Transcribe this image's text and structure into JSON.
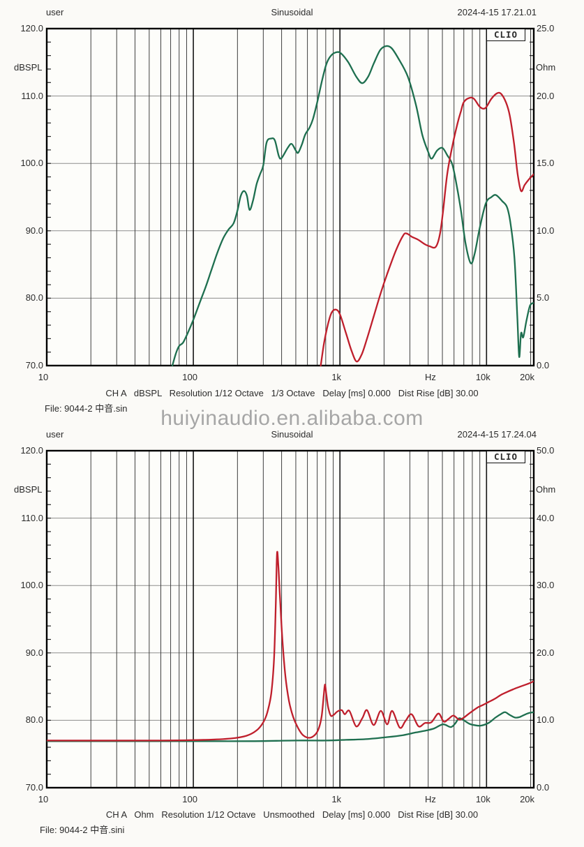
{
  "watermark": {
    "text": "huiyinaudio.en.alibaba.com",
    "color": "#a6a6a6"
  },
  "chart_data": [
    {
      "type": "line",
      "title": "Sinusoidal",
      "header": {
        "user": "user",
        "signal": "Sinusoidal",
        "datetime": "2024-4-15 17.21.01"
      },
      "logo": "CLIO",
      "footer": "CH A   dBSPL   Resolution 1/12 Octave   1/3 Octave   Delay [ms] 0.000   Dist Rise [dB] 30.00",
      "file_label": "File: 9044-2 中音.sin",
      "x_axis": {
        "unit": "Hz",
        "scale": "log",
        "min": 10,
        "max": 21000,
        "ticks": [
          {
            "f": 10,
            "label": "10"
          },
          {
            "f": 100,
            "label": "100"
          },
          {
            "f": 1000,
            "label": "1k"
          },
          {
            "f": 10000,
            "label": "10k"
          },
          {
            "f": 20000,
            "label": "20k"
          }
        ]
      },
      "left_axis": {
        "label": "dBSPL",
        "min": 70,
        "max": 120,
        "tick_values": [
          120,
          110,
          100,
          90,
          80,
          70
        ],
        "tick_labels": [
          "120.0",
          "110.0",
          "100.0",
          "90.0",
          "80.0",
          "70.0"
        ]
      },
      "right_axis": {
        "label": "Ohm",
        "min": 0,
        "max": 25,
        "tick_labels": [
          "25.0",
          "20.0",
          "15.0",
          "10.0",
          "5.0",
          "0.0"
        ]
      },
      "grid": true,
      "series": [
        {
          "name": "spl-response",
          "color": "#1e6f4f",
          "axis": "left",
          "unit": "dBSPL",
          "points": [
            [
              72,
              70
            ],
            [
              76,
              71.8
            ],
            [
              80,
              72.9
            ],
            [
              85,
              73.4
            ],
            [
              91,
              74.7
            ],
            [
              100,
              76.8
            ],
            [
              113,
              79.9
            ],
            [
              122,
              81.8
            ],
            [
              132,
              84
            ],
            [
              145,
              86.6
            ],
            [
              160,
              88.9
            ],
            [
              174,
              90.2
            ],
            [
              188,
              91.1
            ],
            [
              200,
              93
            ],
            [
              210,
              95.1
            ],
            [
              221,
              95.9
            ],
            [
              232,
              95.2
            ],
            [
              242,
              93.1
            ],
            [
              256,
              94.6
            ],
            [
              270,
              96.9
            ],
            [
              285,
              98.4
            ],
            [
              300,
              99.7
            ],
            [
              316,
              103.1
            ],
            [
              340,
              103.7
            ],
            [
              360,
              103.4
            ],
            [
              383,
              101.1
            ],
            [
              400,
              100.8
            ],
            [
              440,
              102.3
            ],
            [
              468,
              102.9
            ],
            [
              500,
              101.9
            ],
            [
              520,
              101.6
            ],
            [
              552,
              102.9
            ],
            [
              580,
              104.3
            ],
            [
              620,
              105.3
            ],
            [
              655,
              106.6
            ],
            [
              700,
              109.1
            ],
            [
              757,
              112.4
            ],
            [
              810,
              114.8
            ],
            [
              870,
              116
            ],
            [
              950,
              116.5
            ],
            [
              1020,
              116.3
            ],
            [
              1140,
              115
            ],
            [
              1290,
              112.9
            ],
            [
              1420,
              111.9
            ],
            [
              1560,
              112.9
            ],
            [
              1700,
              114.8
            ],
            [
              1880,
              116.8
            ],
            [
              2060,
              117.4
            ],
            [
              2250,
              117.1
            ],
            [
              2500,
              115.6
            ],
            [
              2900,
              112.9
            ],
            [
              3300,
              108.7
            ],
            [
              3650,
              104.2
            ],
            [
              4000,
              101.7
            ],
            [
              4220,
              100.7
            ],
            [
              4600,
              101.9
            ],
            [
              5000,
              102.3
            ],
            [
              5400,
              101.2
            ],
            [
              5850,
              99.8
            ],
            [
              6300,
              96.4
            ],
            [
              6700,
              92.9
            ],
            [
              7200,
              88.1
            ],
            [
              7800,
              85.2
            ],
            [
              8300,
              86.6
            ],
            [
              9000,
              90.5
            ],
            [
              9900,
              94.1
            ],
            [
              10800,
              95
            ],
            [
              11600,
              95.3
            ],
            [
              12800,
              94.4
            ],
            [
              13800,
              93.5
            ],
            [
              14600,
              91
            ],
            [
              15500,
              86
            ],
            [
              16200,
              77.5
            ],
            [
              16700,
              71.3
            ],
            [
              17200,
              74.8
            ],
            [
              17800,
              74.2
            ],
            [
              18700,
              76.6
            ],
            [
              19800,
              78.9
            ],
            [
              21000,
              79.3
            ]
          ]
        },
        {
          "name": "distortion-rise",
          "color": "#bf1f2c",
          "axis": "left",
          "unit": "dBSPL",
          "points": [
            [
              740,
              70
            ],
            [
              780,
              73.4
            ],
            [
              830,
              76.2
            ],
            [
              880,
              77.9
            ],
            [
              940,
              78.3
            ],
            [
              1000,
              77.6
            ],
            [
              1100,
              74.8
            ],
            [
              1200,
              72.2
            ],
            [
              1300,
              70.6
            ],
            [
              1410,
              71.7
            ],
            [
              1520,
              73.8
            ],
            [
              1700,
              77.3
            ],
            [
              1900,
              80.8
            ],
            [
              2100,
              83.6
            ],
            [
              2400,
              87
            ],
            [
              2700,
              89.3
            ],
            [
              2850,
              89.6
            ],
            [
              3100,
              89.1
            ],
            [
              3400,
              88.7
            ],
            [
              3800,
              88
            ],
            [
              4100,
              87.7
            ],
            [
              4500,
              87.6
            ],
            [
              4800,
              89.4
            ],
            [
              5050,
              92.9
            ],
            [
              5400,
              98.5
            ],
            [
              5850,
              102.6
            ],
            [
              6350,
              106
            ],
            [
              6700,
              107.8
            ],
            [
              7000,
              109.1
            ],
            [
              7600,
              109.7
            ],
            [
              8200,
              109.6
            ],
            [
              9000,
              108.4
            ],
            [
              9800,
              108.2
            ],
            [
              10800,
              109.6
            ],
            [
              11800,
              110.4
            ],
            [
              12600,
              110.3
            ],
            [
              13600,
              109
            ],
            [
              14400,
              107.1
            ],
            [
              15400,
              103
            ],
            [
              16300,
              98.4
            ],
            [
              17200,
              95.9
            ],
            [
              18200,
              96.8
            ],
            [
              19400,
              97.6
            ],
            [
              21000,
              98.4
            ]
          ]
        }
      ]
    },
    {
      "type": "line",
      "title": "Sinusoidal",
      "header": {
        "user": "user",
        "signal": "Sinusoidal",
        "datetime": "2024-4-15 17.24.04"
      },
      "logo": "CLIO",
      "footer": "CH A   Ohm   Resolution 1/12 Octave   Unsmoothed   Delay [ms] 0.000   Dist Rise [dB] 30.00",
      "file_label": "File: 9044-2  中音.sini",
      "x_axis": {
        "unit": "Hz",
        "scale": "log",
        "min": 10,
        "max": 21000,
        "ticks": [
          {
            "f": 10,
            "label": "10"
          },
          {
            "f": 100,
            "label": "100"
          },
          {
            "f": 1000,
            "label": "1k"
          },
          {
            "f": 10000,
            "label": "10k"
          },
          {
            "f": 20000,
            "label": "20k"
          }
        ]
      },
      "left_axis": {
        "label": "dBSPL",
        "min": 70,
        "max": 120,
        "tick_values": [
          120,
          110,
          100,
          90,
          80,
          70
        ],
        "tick_labels": [
          "120.0",
          "110.0",
          "100.0",
          "90.0",
          "80.0",
          "70.0"
        ]
      },
      "right_axis": {
        "label": "Ohm",
        "min": 0,
        "max": 50,
        "tick_labels": [
          "50.0",
          "40.0",
          "30.0",
          "20.0",
          "10.0",
          "0.0"
        ]
      },
      "grid": true,
      "series": [
        {
          "name": "spl-flat",
          "color": "#1e6f4f",
          "axis": "left",
          "unit": "dBSPL",
          "points": [
            [
              10,
              76.9
            ],
            [
              60,
              76.9
            ],
            [
              120,
              76.9
            ],
            [
              250,
              76.9
            ],
            [
              500,
              77
            ],
            [
              800,
              77
            ],
            [
              1100,
              77.1
            ],
            [
              1500,
              77.2
            ],
            [
              2100,
              77.5
            ],
            [
              2700,
              77.8
            ],
            [
              3300,
              78.2
            ],
            [
              3900,
              78.5
            ],
            [
              4400,
              78.8
            ],
            [
              5050,
              79.4
            ],
            [
              5700,
              79
            ],
            [
              6100,
              79.5
            ],
            [
              6500,
              80.3
            ],
            [
              7000,
              80
            ],
            [
              7600,
              79.5
            ],
            [
              8200,
              79.3
            ],
            [
              9100,
              79.2
            ],
            [
              10300,
              79.6
            ],
            [
              11500,
              80.4
            ],
            [
              12700,
              81
            ],
            [
              13400,
              81.2
            ],
            [
              14400,
              80.8
            ],
            [
              15700,
              80.4
            ],
            [
              16900,
              80.5
            ],
            [
              18100,
              80.8
            ],
            [
              19600,
              81.1
            ],
            [
              21000,
              81.2
            ]
          ]
        },
        {
          "name": "impedance",
          "color": "#bf1f2c",
          "axis": "right",
          "unit": "Ohm",
          "points": [
            [
              10,
              7
            ],
            [
              60,
              7
            ],
            [
              120,
              7.1
            ],
            [
              180,
              7.3
            ],
            [
              230,
              7.7
            ],
            [
              270,
              8.5
            ],
            [
              300,
              9.7
            ],
            [
              320,
              11.2
            ],
            [
              340,
              14
            ],
            [
              355,
              19
            ],
            [
              365,
              27
            ],
            [
              372,
              34.7
            ],
            [
              380,
              33
            ],
            [
              390,
              28.2
            ],
            [
              405,
              22
            ],
            [
              425,
              16.5
            ],
            [
              450,
              12.8
            ],
            [
              480,
              10.5
            ],
            [
              520,
              8.8
            ],
            [
              560,
              7.8
            ],
            [
              620,
              7.4
            ],
            [
              680,
              7.9
            ],
            [
              720,
              8.9
            ],
            [
              750,
              10.6
            ],
            [
              775,
              13.6
            ],
            [
              790,
              15.3
            ],
            [
              806,
              14
            ],
            [
              830,
              12
            ],
            [
              865,
              10.7
            ],
            [
              905,
              10.8
            ],
            [
              960,
              11.3
            ],
            [
              1030,
              11.5
            ],
            [
              1080,
              10.9
            ],
            [
              1160,
              11.4
            ],
            [
              1290,
              9.1
            ],
            [
              1420,
              10.3
            ],
            [
              1530,
              11.5
            ],
            [
              1700,
              9.3
            ],
            [
              1900,
              11.4
            ],
            [
              2100,
              9.4
            ],
            [
              2270,
              11.4
            ],
            [
              2560,
              8.9
            ],
            [
              2800,
              9.9
            ],
            [
              3080,
              10.9
            ],
            [
              3440,
              9.1
            ],
            [
              3800,
              9.6
            ],
            [
              4200,
              9.7
            ],
            [
              4700,
              11
            ],
            [
              5100,
              9.8
            ],
            [
              5500,
              10.2
            ],
            [
              5950,
              10.7
            ],
            [
              6500,
              10.1
            ],
            [
              7000,
              10.4
            ],
            [
              7700,
              11.1
            ],
            [
              8700,
              11.9
            ],
            [
              9500,
              12.3
            ],
            [
              10300,
              12.7
            ],
            [
              11400,
              13.2
            ],
            [
              12600,
              13.8
            ],
            [
              13800,
              14.2
            ],
            [
              15200,
              14.6
            ],
            [
              16500,
              14.9
            ],
            [
              18000,
              15.2
            ],
            [
              19600,
              15.5
            ],
            [
              21000,
              15.8
            ]
          ]
        }
      ]
    }
  ]
}
